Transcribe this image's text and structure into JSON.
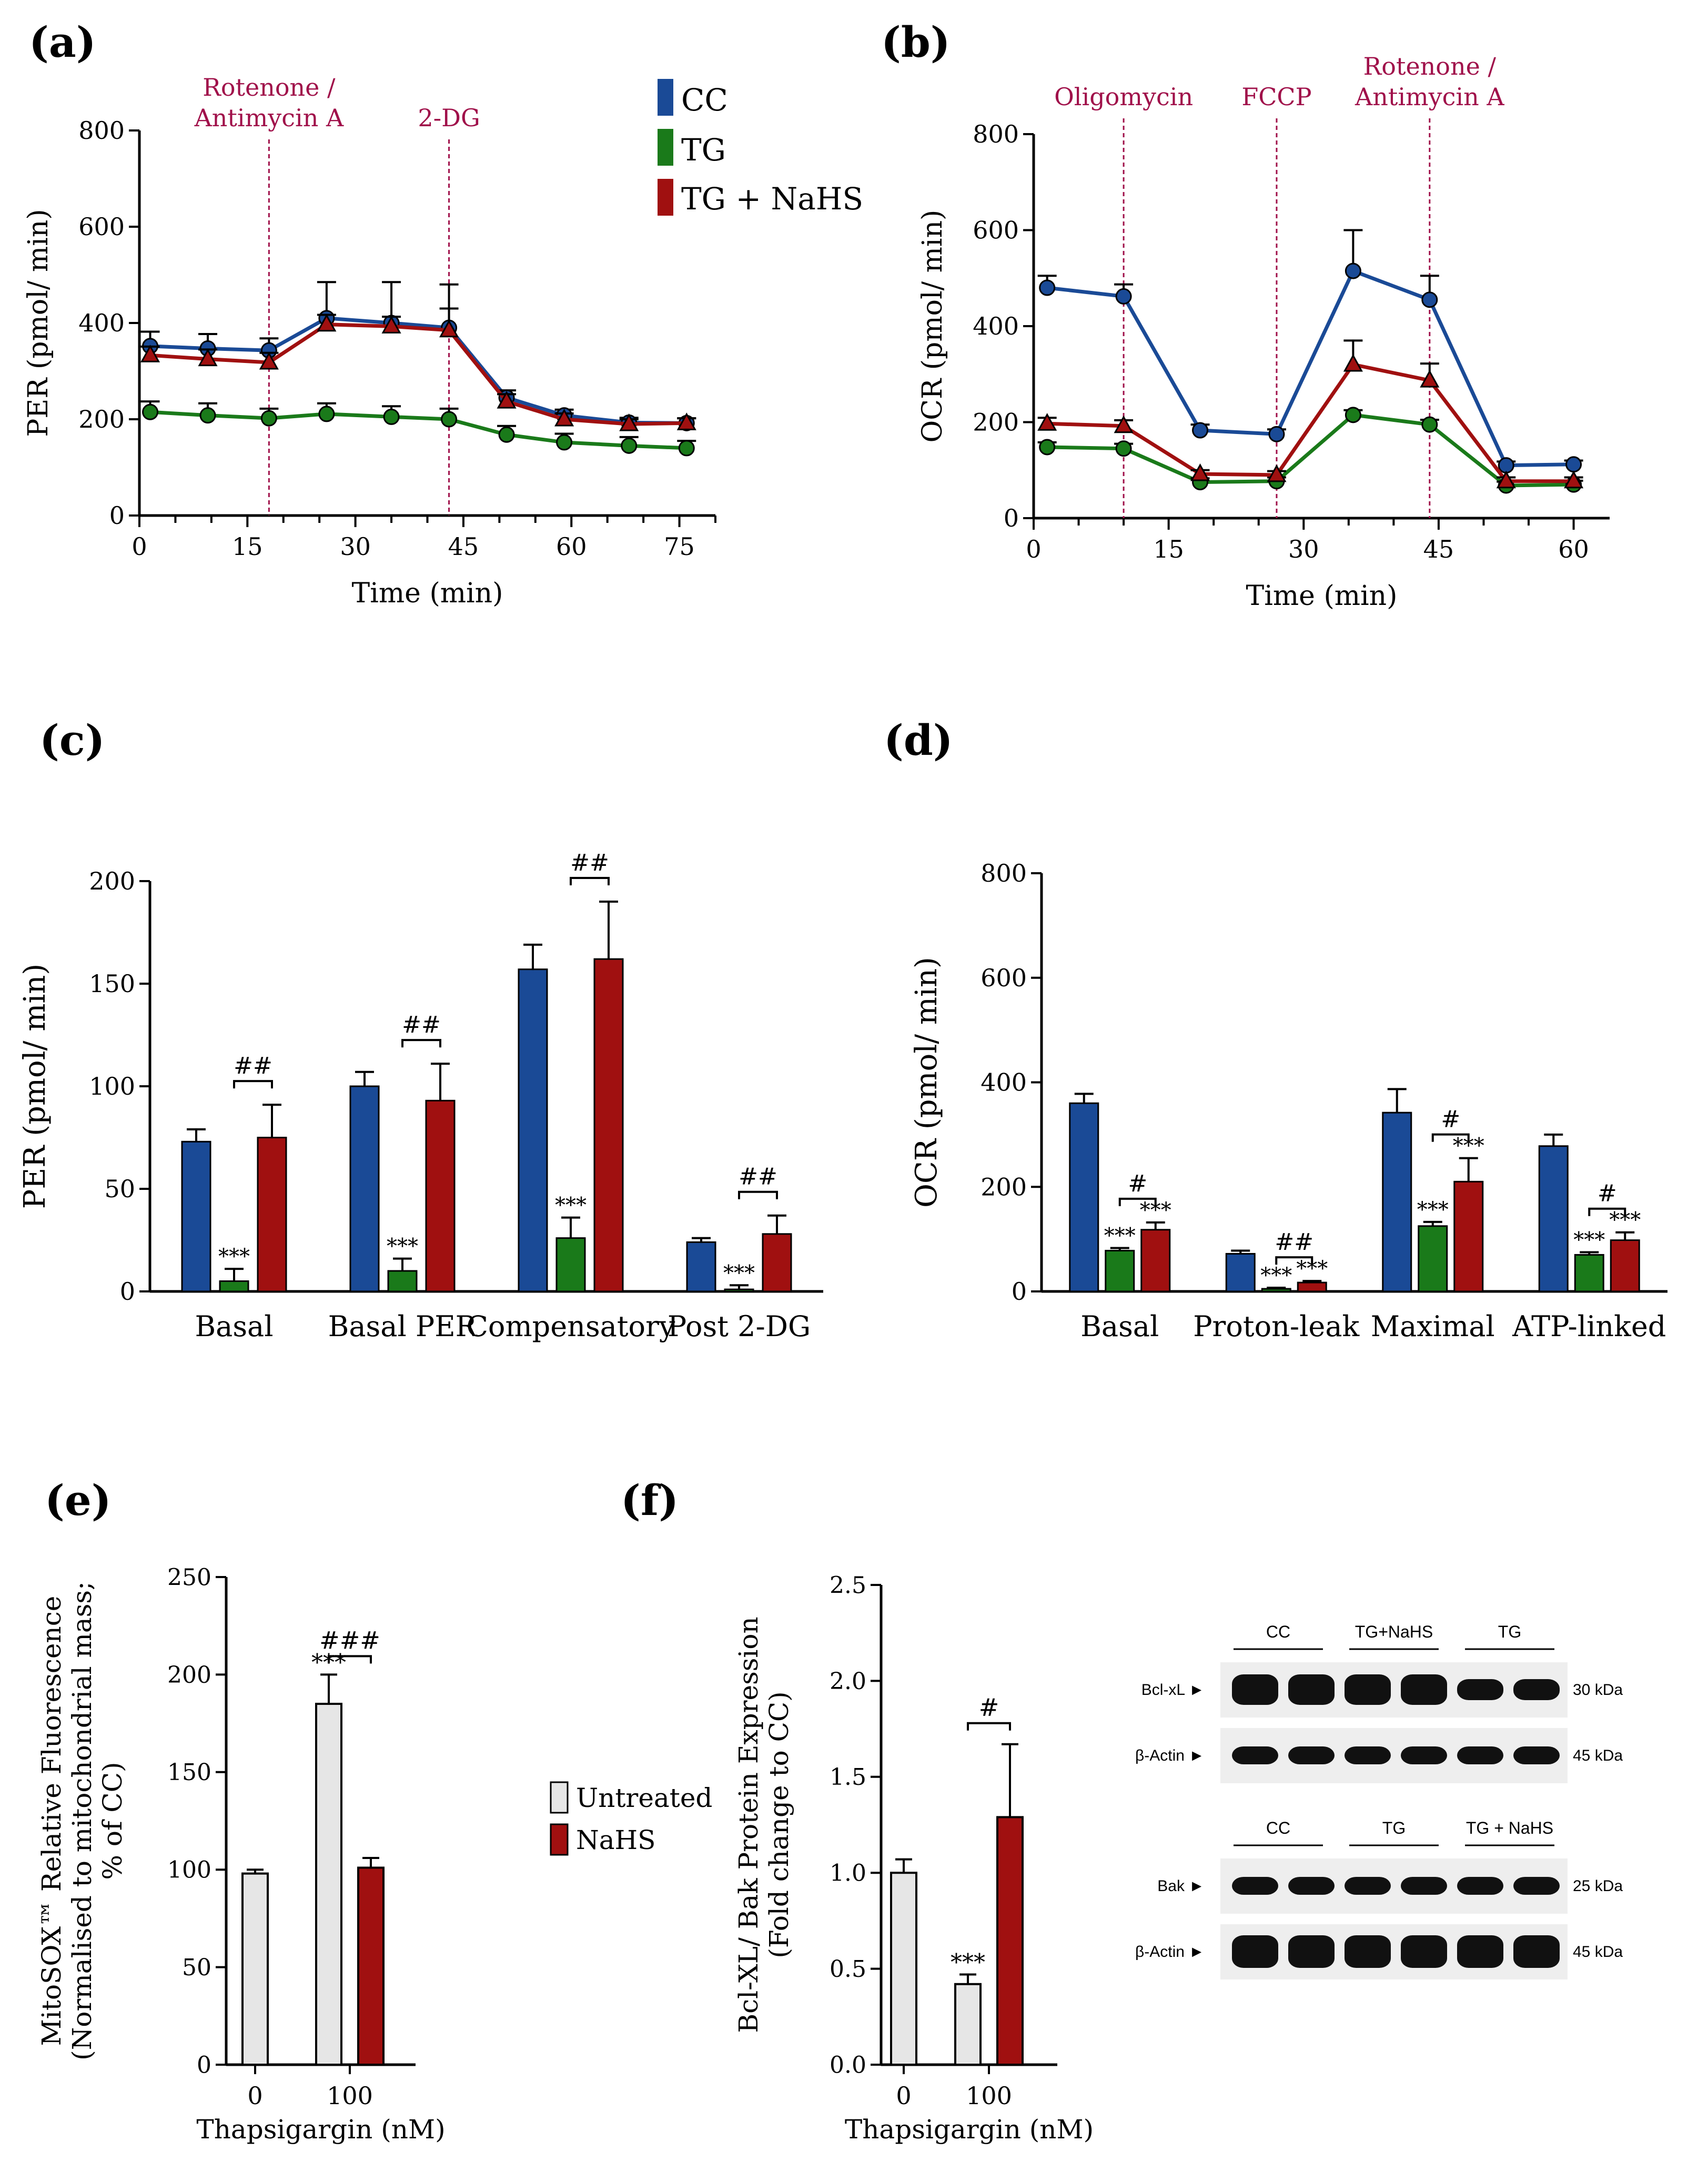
{
  "colors": {
    "cc": "#1a4a96",
    "tg": "#1a7a1a",
    "tgn": "#a01010",
    "marker": "#a0104a",
    "untreated": "#e6e6e6",
    "nahs": "#a01010",
    "axis": "#000000"
  },
  "panel_labels": {
    "a": "(a)",
    "b": "(b)",
    "c": "(c)",
    "d": "(d)",
    "e": "(e)",
    "f": "(f)"
  },
  "legend_top": {
    "cc": "CC",
    "tg": "TG",
    "tgn": "TG + NaHS"
  },
  "legend_e": {
    "untreated": "Untreated",
    "nahs": "NaHS"
  },
  "chart_data": [
    {
      "id": "a",
      "type": "line",
      "xlabel": "Time (min)",
      "ylabel": "PER (pmol/ min)",
      "xlim": [
        0,
        80
      ],
      "ylim": [
        0,
        800
      ],
      "xticks": [
        0,
        15,
        30,
        45,
        60,
        75
      ],
      "yticks": [
        0,
        200,
        400,
        600,
        800
      ],
      "markers": [
        {
          "x": 18,
          "label": [
            "Rotenone /",
            "Antimycin A"
          ]
        },
        {
          "x": 43,
          "label": [
            "2-DG"
          ]
        }
      ],
      "x": [
        1.5,
        9.5,
        18,
        26,
        35,
        43,
        51,
        59,
        68,
        76
      ],
      "series": [
        {
          "name": "CC",
          "color": "cc",
          "shape": "circle",
          "values": [
            352,
            347,
            343,
            410,
            400,
            390,
            245,
            208,
            193,
            192
          ],
          "err": [
            30,
            30,
            25,
            75,
            85,
            90,
            15,
            12,
            10,
            10
          ]
        },
        {
          "name": "TG",
          "color": "tg",
          "shape": "circle",
          "values": [
            215,
            208,
            202,
            211,
            205,
            200,
            168,
            152,
            145,
            140
          ],
          "err": [
            22,
            25,
            20,
            22,
            22,
            22,
            18,
            18,
            18,
            15
          ]
        },
        {
          "name": "TG + NaHS",
          "color": "tgn",
          "shape": "triangle",
          "values": [
            333,
            325,
            318,
            397,
            393,
            385,
            237,
            200,
            190,
            192
          ],
          "err": [
            18,
            20,
            20,
            20,
            20,
            45,
            15,
            12,
            10,
            10
          ]
        }
      ]
    },
    {
      "id": "b",
      "type": "line",
      "xlabel": "Time (min)",
      "ylabel": "OCR (pmol/ min)",
      "xlim": [
        0,
        64
      ],
      "ylim": [
        0,
        800
      ],
      "xticks": [
        0,
        15,
        30,
        45,
        60
      ],
      "yticks": [
        0,
        200,
        400,
        600,
        800
      ],
      "markers": [
        {
          "x": 10,
          "label": [
            "Oligomycin"
          ]
        },
        {
          "x": 27,
          "label": [
            "FCCP"
          ]
        },
        {
          "x": 44,
          "label": [
            "Rotenone /",
            "Antimycin A"
          ]
        }
      ],
      "x": [
        1.5,
        10,
        18.5,
        27,
        35.5,
        44,
        52.5,
        60
      ],
      "series": [
        {
          "name": "CC",
          "color": "cc",
          "shape": "circle",
          "values": [
            480,
            462,
            183,
            175,
            515,
            455,
            110,
            112
          ],
          "err": [
            25,
            25,
            12,
            10,
            85,
            50,
            8,
            8
          ]
        },
        {
          "name": "TG",
          "color": "tg",
          "shape": "circle",
          "values": [
            148,
            145,
            75,
            77,
            215,
            195,
            68,
            70
          ],
          "err": [
            10,
            10,
            8,
            8,
            10,
            10,
            8,
            8
          ]
        },
        {
          "name": "TG + NaHS",
          "color": "tgn",
          "shape": "triangle",
          "values": [
            197,
            192,
            92,
            90,
            320,
            287,
            77,
            77
          ],
          "err": [
            12,
            12,
            8,
            8,
            50,
            35,
            8,
            8
          ]
        }
      ]
    },
    {
      "id": "c",
      "type": "bar",
      "ylabel": "PER (pmol/ min)",
      "ylim": [
        0,
        200
      ],
      "yticks": [
        0,
        50,
        100,
        150,
        200
      ],
      "categories": [
        "Basal",
        "Basal PER",
        "Compensatory",
        "Post 2-DG"
      ],
      "series": [
        {
          "name": "CC",
          "color": "cc",
          "values": [
            73,
            100,
            157,
            24
          ],
          "err": [
            6,
            7,
            12,
            2
          ],
          "sig": [
            "",
            "",
            "",
            ""
          ]
        },
        {
          "name": "TG",
          "color": "tg",
          "values": [
            5,
            10,
            26,
            1
          ],
          "err": [
            6,
            6,
            10,
            2
          ],
          "sig": [
            "***",
            "***",
            "***",
            "***"
          ]
        },
        {
          "name": "TG + NaHS",
          "color": "tgn",
          "values": [
            75,
            93,
            162,
            28
          ],
          "err": [
            16,
            18,
            28,
            9
          ],
          "sig": [
            "",
            "",
            "",
            ""
          ]
        }
      ],
      "brackets": [
        "##",
        "##",
        "##",
        "##"
      ]
    },
    {
      "id": "d",
      "type": "bar",
      "ylabel": "OCR (pmol/ min)",
      "ylim": [
        0,
        800
      ],
      "yticks": [
        0,
        200,
        400,
        600,
        800
      ],
      "categories": [
        "Basal",
        "Proton-leak",
        "Maximal",
        "ATP-linked"
      ],
      "series": [
        {
          "name": "CC",
          "color": "cc",
          "values": [
            360,
            72,
            342,
            278
          ],
          "err": [
            18,
            6,
            45,
            22
          ],
          "sig": [
            "",
            "",
            "",
            ""
          ]
        },
        {
          "name": "TG",
          "color": "tg",
          "values": [
            78,
            5,
            125,
            70
          ],
          "err": [
            5,
            2,
            8,
            5
          ],
          "sig": [
            "***",
            "***",
            "***",
            "***"
          ]
        },
        {
          "name": "TG + NaHS",
          "color": "tgn",
          "values": [
            118,
            17,
            210,
            98
          ],
          "err": [
            14,
            3,
            45,
            15
          ],
          "sig": [
            "***",
            "***",
            "***",
            "***"
          ]
        }
      ],
      "brackets": [
        "#",
        "##",
        "#",
        "#"
      ]
    },
    {
      "id": "e",
      "type": "bar",
      "ylabel": [
        "MitoSOX™ Relative Fluorescence",
        "(Normalised to mitochondrial mass;",
        "% of CC)"
      ],
      "xlabel": "Thapsigargin (nM)",
      "ylim": [
        0,
        250
      ],
      "yticks": [
        0,
        50,
        100,
        150,
        200,
        250
      ],
      "categories": [
        "0",
        "100"
      ],
      "bars": [
        {
          "group": "0",
          "kind": "untreated",
          "value": 98,
          "err": 2,
          "sig": ""
        },
        {
          "group": "100",
          "kind": "untreated",
          "value": 185,
          "err": 15,
          "sig": "***"
        },
        {
          "group": "100",
          "kind": "nahs",
          "value": 101,
          "err": 5,
          "sig": ""
        }
      ],
      "bracket": "###"
    },
    {
      "id": "f",
      "type": "bar",
      "ylabel": [
        "Bcl-XL/ Bak Protein Expression",
        "(Fold change to CC)"
      ],
      "xlabel": "Thapsigargin (nM)",
      "ylim": [
        0,
        2.5
      ],
      "yticks": [
        "0.0",
        "0.5",
        "1.0",
        "1.5",
        "2.0",
        "2.5"
      ],
      "categories": [
        "0",
        "100"
      ],
      "bars": [
        {
          "group": "0",
          "kind": "untreated",
          "value": 1.0,
          "err": 0.07,
          "sig": ""
        },
        {
          "group": "100",
          "kind": "untreated",
          "value": 0.42,
          "err": 0.05,
          "sig": "***"
        },
        {
          "group": "100",
          "kind": "nahs",
          "value": 1.29,
          "err": 0.38,
          "sig": ""
        }
      ],
      "bracket": "#"
    }
  ],
  "blots": {
    "top": {
      "groups": [
        "CC",
        "TG+NaHS",
        "TG"
      ],
      "rows": [
        {
          "label": "Bcl-xL ►",
          "kda": "30 kDa"
        },
        {
          "label": "β-Actin ►",
          "kda": "45 kDa"
        }
      ]
    },
    "bottom": {
      "groups": [
        "CC",
        "TG",
        "TG + NaHS"
      ],
      "rows": [
        {
          "label": "Bak ►",
          "kda": "25 kDa"
        },
        {
          "label": "β-Actin ►",
          "kda": "45 kDa"
        }
      ]
    }
  }
}
